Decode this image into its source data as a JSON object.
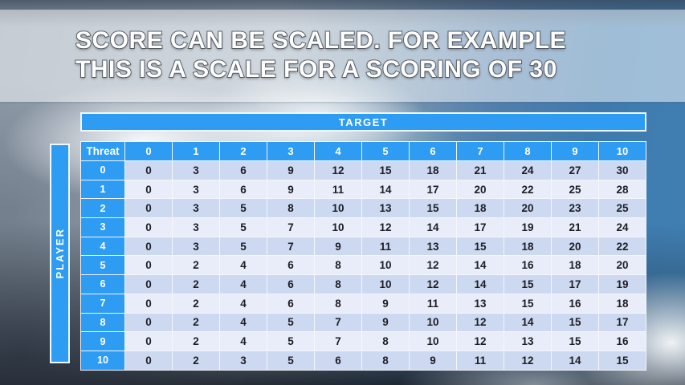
{
  "slide": {
    "title_line1": "SCORE CAN BE SCALED. FOR EXAMPLE",
    "title_line2": "THIS IS A SCALE FOR A SCORING OF 30"
  },
  "table": {
    "target_label": "TARGET",
    "player_label": "PLAYER",
    "corner_label": "Threat",
    "column_headers": [
      "0",
      "1",
      "2",
      "3",
      "4",
      "5",
      "6",
      "7",
      "8",
      "9",
      "10"
    ],
    "rows": [
      {
        "header": "0",
        "values": [
          0,
          3,
          6,
          9,
          12,
          15,
          18,
          21,
          24,
          27,
          30
        ]
      },
      {
        "header": "1",
        "values": [
          0,
          3,
          6,
          9,
          11,
          14,
          17,
          20,
          22,
          25,
          28
        ]
      },
      {
        "header": "2",
        "values": [
          0,
          3,
          5,
          8,
          10,
          13,
          15,
          18,
          20,
          23,
          25
        ]
      },
      {
        "header": "3",
        "values": [
          0,
          3,
          5,
          7,
          10,
          12,
          14,
          17,
          19,
          21,
          24
        ]
      },
      {
        "header": "4",
        "values": [
          0,
          3,
          5,
          7,
          9,
          11,
          13,
          15,
          18,
          20,
          22
        ]
      },
      {
        "header": "5",
        "values": [
          0,
          2,
          4,
          6,
          8,
          10,
          12,
          14,
          16,
          18,
          20
        ]
      },
      {
        "header": "6",
        "values": [
          0,
          2,
          4,
          6,
          8,
          10,
          12,
          14,
          15,
          17,
          19
        ]
      },
      {
        "header": "7",
        "values": [
          0,
          2,
          4,
          6,
          8,
          9,
          11,
          13,
          15,
          16,
          18
        ]
      },
      {
        "header": "8",
        "values": [
          0,
          2,
          4,
          5,
          7,
          9,
          10,
          12,
          14,
          15,
          17
        ]
      },
      {
        "header": "9",
        "values": [
          0,
          2,
          4,
          5,
          7,
          8,
          10,
          12,
          13,
          15,
          16
        ]
      },
      {
        "header": "10",
        "values": [
          0,
          2,
          3,
          5,
          6,
          8,
          9,
          11,
          12,
          14,
          15
        ]
      }
    ]
  },
  "colors": {
    "header_blue": "#2E9CF3",
    "row_even": "#CDD9F1",
    "row_odd": "#E9EDF9",
    "cell_text": "#1D1D24",
    "header_text": "#FFFFFF",
    "title_fill": "#FFFFFF",
    "title_outline": "#5D6269"
  }
}
